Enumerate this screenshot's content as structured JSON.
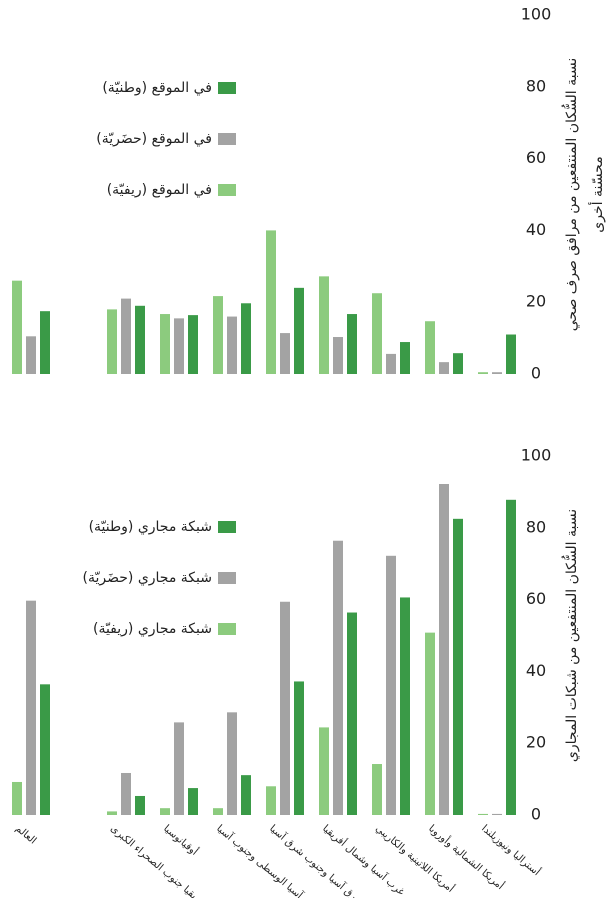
{
  "chart_data": [
    {
      "type": "bar",
      "ylabel": [
        "نسبة السُّكان المنتفعين من مرافق صرف صحي",
        "محسّنة أخرى"
      ],
      "categories": [
        null,
        null,
        null,
        null,
        null,
        null,
        null,
        null,
        null
      ],
      "series": [
        {
          "name": "في الموقع (وطنيّة)",
          "color": "#3a9a47",
          "values": [
            17.5,
            19,
            16.4,
            19.7,
            24,
            16.7,
            8.9,
            5.8,
            11
          ]
        },
        {
          "name": "في الموقع (حضَريّة)",
          "color": "#a3a3a3",
          "values": [
            10.5,
            21,
            15.5,
            16,
            11.4,
            10.3,
            5.6,
            3.3,
            0.5
          ]
        },
        {
          "name": "في الموقع (ريفيّة)",
          "color": "#8ccb7e",
          "values": [
            26,
            18,
            16.7,
            21.7,
            40,
            27.2,
            22.5,
            14.7,
            0.5
          ]
        }
      ],
      "ylim": [
        0,
        100
      ],
      "yticks": [
        0,
        20,
        40,
        60,
        80,
        100
      ],
      "legend": "upper-left"
    },
    {
      "type": "bar",
      "ylabel": [
        "نسبة السُّكان المنتفعين من شبكات المجاري"
      ],
      "categories": [
        "العالم",
        "أفريقيا جنوب الصحراء الكبرى",
        "أوقيانوسيا",
        "آسيا الوسطى وجنوب آسيا",
        "شرق آسيا وجنوب شرق آسيا",
        "غرب آسيا وشمال أفريقيا",
        "أمريكا اللاتينية والكاريبي",
        "أمريكا الشمالية وأوروبا",
        "أستراليا ونيوزيلندا"
      ],
      "series": [
        {
          "name": "شبكة مجاري (وطنيّة)",
          "color": "#3a9a47",
          "values": [
            36.4,
            5.3,
            7.5,
            11.1,
            37.2,
            56.4,
            60.6,
            82.5,
            87.8
          ]
        },
        {
          "name": "شبكة مجاري (حضَريّة)",
          "color": "#a3a3a3",
          "values": [
            59.7,
            11.7,
            25.8,
            28.6,
            59.4,
            76.4,
            72.2,
            92.2,
            0.3
          ]
        },
        {
          "name": "شبكة مجاري (ريفيّة)",
          "color": "#8ccb7e",
          "values": [
            9.2,
            1,
            1.9,
            1.9,
            8,
            24.4,
            14.2,
            50.8,
            0.3
          ]
        }
      ],
      "ylim": [
        0,
        100
      ],
      "yticks": [
        0,
        20,
        40,
        60,
        80,
        100
      ],
      "legend": "upper-left"
    }
  ]
}
